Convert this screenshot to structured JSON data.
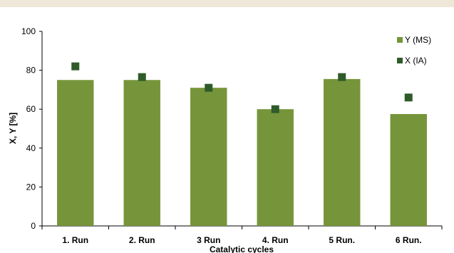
{
  "chart_data": {
    "type": "bar",
    "categories": [
      "1. Run",
      "2. Run",
      "3 Run",
      "4. Run",
      "5 Run.",
      "6 Run."
    ],
    "series": [
      {
        "name": "Y (MS)",
        "kind": "bar",
        "color": "#76953a",
        "values": [
          75,
          75,
          71,
          60,
          75.5,
          57.5
        ]
      },
      {
        "name": "X (IA)",
        "kind": "marker",
        "color": "#2f5b2a",
        "values": [
          82,
          76.5,
          71,
          60,
          76.5,
          66
        ]
      }
    ],
    "title": "",
    "xlabel": "Catalytic cycles",
    "ylabel": "X, Y [%]",
    "ylim": [
      0,
      100
    ],
    "yticks": [
      0,
      20,
      40,
      60,
      80,
      100
    ],
    "grid": false,
    "legend": "top-right"
  }
}
